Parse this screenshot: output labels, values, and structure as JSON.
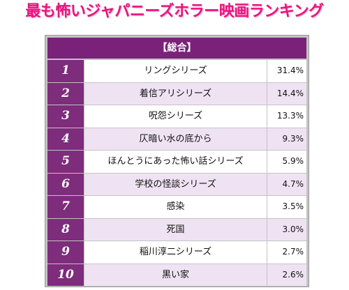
{
  "title": "最も怖いジャパニーズホラー映画ランキング",
  "table": {
    "header": "【総合】",
    "rows": [
      {
        "rank": "1",
        "title": "リングシリーズ",
        "percent": "31.4%"
      },
      {
        "rank": "2",
        "title": "着信アリシリーズ",
        "percent": "14.4%"
      },
      {
        "rank": "3",
        "title": "呪怨シリーズ",
        "percent": "13.3%"
      },
      {
        "rank": "4",
        "title": "仄暗い水の底から",
        "percent": "9.3%"
      },
      {
        "rank": "5",
        "title": "ほんとうにあった怖い話シリーズ",
        "percent": "5.9%"
      },
      {
        "rank": "6",
        "title": "学校の怪談シリーズ",
        "percent": "4.7%"
      },
      {
        "rank": "7",
        "title": "感染",
        "percent": "3.5%"
      },
      {
        "rank": "8",
        "title": "死国",
        "percent": "3.0%"
      },
      {
        "rank": "9",
        "title": "稲川淳二シリーズ",
        "percent": "2.7%"
      },
      {
        "rank": "10",
        "title": "黒い家",
        "percent": "2.6%"
      }
    ]
  },
  "colors": {
    "title": "#e8157f",
    "rank_cell": "#7e2c7c",
    "header": "#7a2179",
    "alt_row": "#efe3f3"
  }
}
